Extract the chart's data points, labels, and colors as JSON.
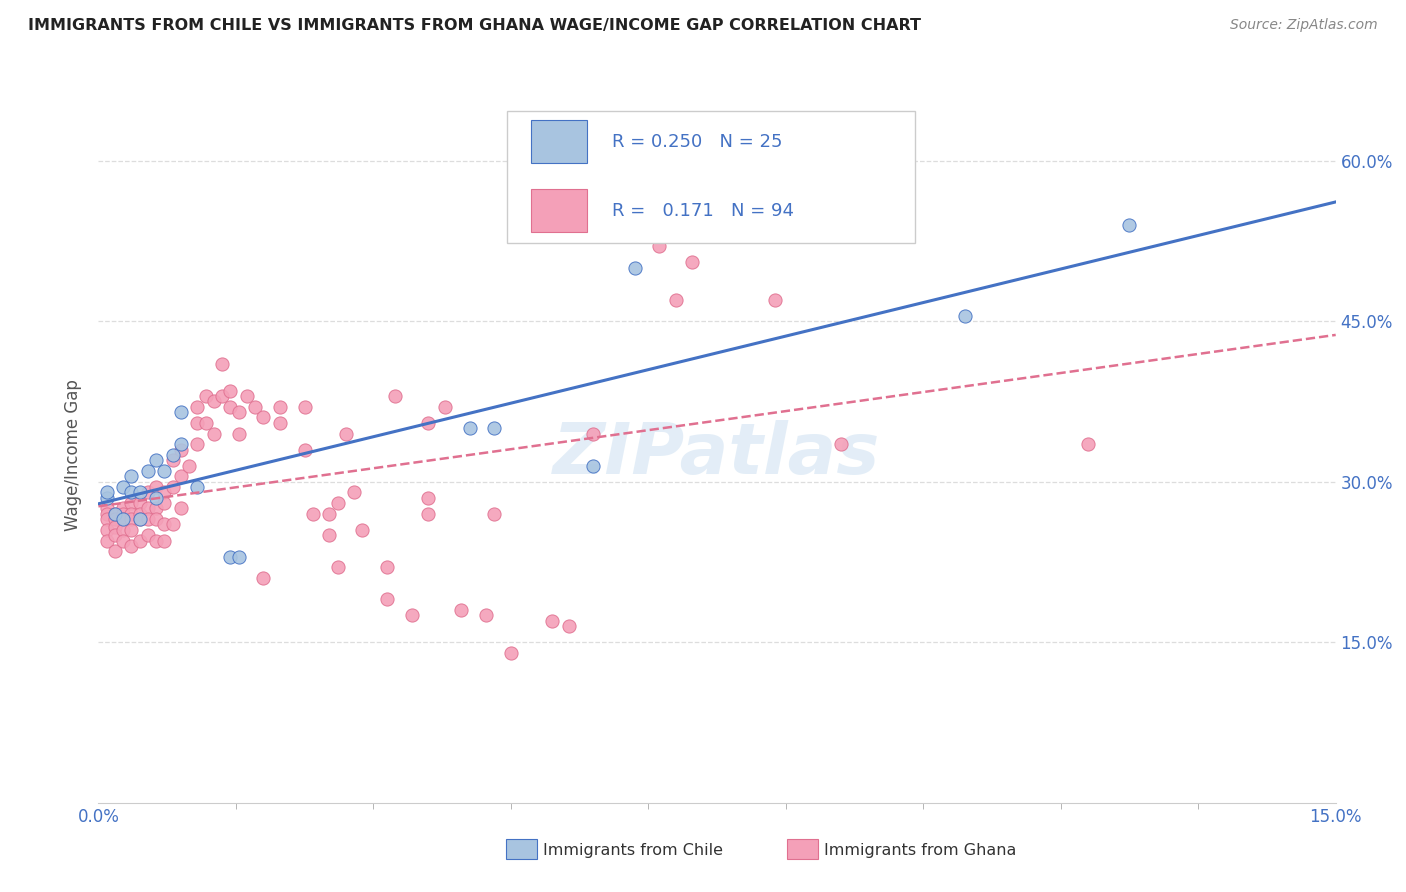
{
  "title": "IMMIGRANTS FROM CHILE VS IMMIGRANTS FROM GHANA WAGE/INCOME GAP CORRELATION CHART",
  "source": "Source: ZipAtlas.com",
  "ylabel": "Wage/Income Gap",
  "yaxis_labels": [
    "60.0%",
    "45.0%",
    "30.0%",
    "15.0%"
  ],
  "yaxis_values": [
    0.6,
    0.45,
    0.3,
    0.15
  ],
  "xlim": [
    0.0,
    0.15
  ],
  "ylim": [
    0.0,
    0.65
  ],
  "chile_color": "#a8c4e0",
  "ghana_color": "#f4a0b8",
  "chile_line_color": "#4472c4",
  "ghana_line_color": "#e07090",
  "R_chile": "0.250",
  "N_chile": "25",
  "R_ghana": "0.171",
  "N_ghana": "94",
  "chile_x": [
    0.001,
    0.001,
    0.002,
    0.003,
    0.003,
    0.004,
    0.004,
    0.005,
    0.005,
    0.006,
    0.007,
    0.007,
    0.008,
    0.009,
    0.01,
    0.01,
    0.012,
    0.016,
    0.017,
    0.045,
    0.048,
    0.06,
    0.065,
    0.105,
    0.125
  ],
  "chile_y": [
    0.285,
    0.29,
    0.27,
    0.265,
    0.295,
    0.29,
    0.305,
    0.29,
    0.265,
    0.31,
    0.285,
    0.32,
    0.31,
    0.325,
    0.335,
    0.365,
    0.295,
    0.23,
    0.23,
    0.35,
    0.35,
    0.315,
    0.5,
    0.455,
    0.54
  ],
  "ghana_x": [
    0.001,
    0.001,
    0.001,
    0.001,
    0.001,
    0.002,
    0.002,
    0.002,
    0.002,
    0.002,
    0.003,
    0.003,
    0.003,
    0.003,
    0.003,
    0.004,
    0.004,
    0.004,
    0.004,
    0.004,
    0.005,
    0.005,
    0.005,
    0.005,
    0.006,
    0.006,
    0.006,
    0.006,
    0.007,
    0.007,
    0.007,
    0.007,
    0.008,
    0.008,
    0.008,
    0.008,
    0.009,
    0.009,
    0.009,
    0.01,
    0.01,
    0.01,
    0.011,
    0.012,
    0.012,
    0.012,
    0.013,
    0.013,
    0.014,
    0.014,
    0.015,
    0.015,
    0.016,
    0.016,
    0.017,
    0.017,
    0.018,
    0.019,
    0.02,
    0.02,
    0.022,
    0.022,
    0.025,
    0.025,
    0.026,
    0.028,
    0.028,
    0.029,
    0.029,
    0.03,
    0.031,
    0.032,
    0.035,
    0.035,
    0.036,
    0.038,
    0.04,
    0.04,
    0.04,
    0.042,
    0.044,
    0.047,
    0.048,
    0.05,
    0.055,
    0.057,
    0.06,
    0.065,
    0.068,
    0.07,
    0.072,
    0.082,
    0.09,
    0.12
  ],
  "ghana_y": [
    0.275,
    0.27,
    0.265,
    0.255,
    0.245,
    0.27,
    0.265,
    0.258,
    0.25,
    0.235,
    0.275,
    0.27,
    0.265,
    0.255,
    0.245,
    0.28,
    0.27,
    0.265,
    0.255,
    0.24,
    0.28,
    0.27,
    0.265,
    0.245,
    0.29,
    0.275,
    0.265,
    0.25,
    0.295,
    0.275,
    0.265,
    0.245,
    0.29,
    0.28,
    0.26,
    0.245,
    0.32,
    0.295,
    0.26,
    0.33,
    0.305,
    0.275,
    0.315,
    0.37,
    0.355,
    0.335,
    0.38,
    0.355,
    0.375,
    0.345,
    0.41,
    0.38,
    0.385,
    0.37,
    0.365,
    0.345,
    0.38,
    0.37,
    0.36,
    0.21,
    0.37,
    0.355,
    0.37,
    0.33,
    0.27,
    0.27,
    0.25,
    0.28,
    0.22,
    0.345,
    0.29,
    0.255,
    0.22,
    0.19,
    0.38,
    0.175,
    0.355,
    0.285,
    0.27,
    0.37,
    0.18,
    0.175,
    0.27,
    0.14,
    0.17,
    0.165,
    0.345,
    0.595,
    0.52,
    0.47,
    0.505,
    0.47,
    0.335,
    0.335
  ],
  "watermark": "ZIPatlas",
  "background_color": "#ffffff",
  "grid_color": "#dddddd"
}
